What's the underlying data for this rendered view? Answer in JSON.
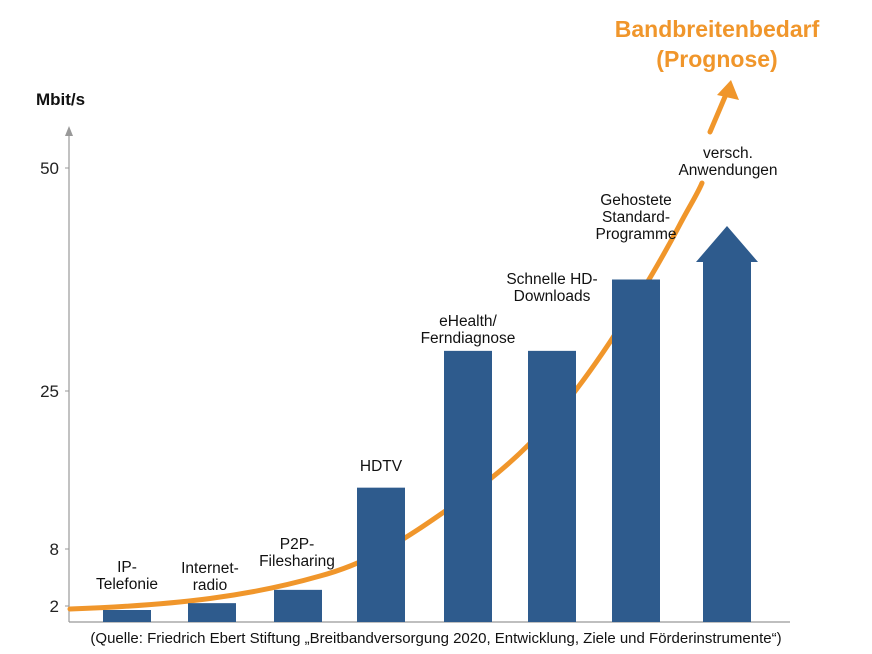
{
  "chart_data": {
    "type": "bar",
    "title": [
      "Bandbreitenbedarf",
      "(Prognose)"
    ],
    "ylabel": "Mbit/s",
    "yticks": [
      2,
      8,
      25,
      50
    ],
    "categories": [
      [
        "IP-",
        "Telefonie"
      ],
      [
        "Internet-",
        "radio"
      ],
      [
        "P2P-",
        "Filesharing"
      ],
      [
        "HDTV"
      ],
      [
        "eHealth/",
        "Ferndiagnose"
      ],
      [
        "Schnelle HD-",
        "Downloads"
      ],
      [
        "Gehostete",
        "Standard-",
        "Programme"
      ],
      [
        "versch.",
        "Anwendungen"
      ]
    ],
    "values": [
      1.5,
      2.3,
      3.7,
      14.6,
      29.5,
      29.5,
      37.5,
      43.5
    ],
    "last_bar_style": "arrow",
    "grid": false,
    "legend": "none",
    "trend": "rising curve with arrowhead",
    "source": "(Quelle: Friedrich Ebert Stiftung „Breitbandversorgung 2020, Entwicklung, Ziele und Förderinstrumente“)",
    "colors": {
      "bar": "#2e5b8d",
      "trend": "#f0962b",
      "title": "#f0962b",
      "axis": "#999999"
    }
  }
}
